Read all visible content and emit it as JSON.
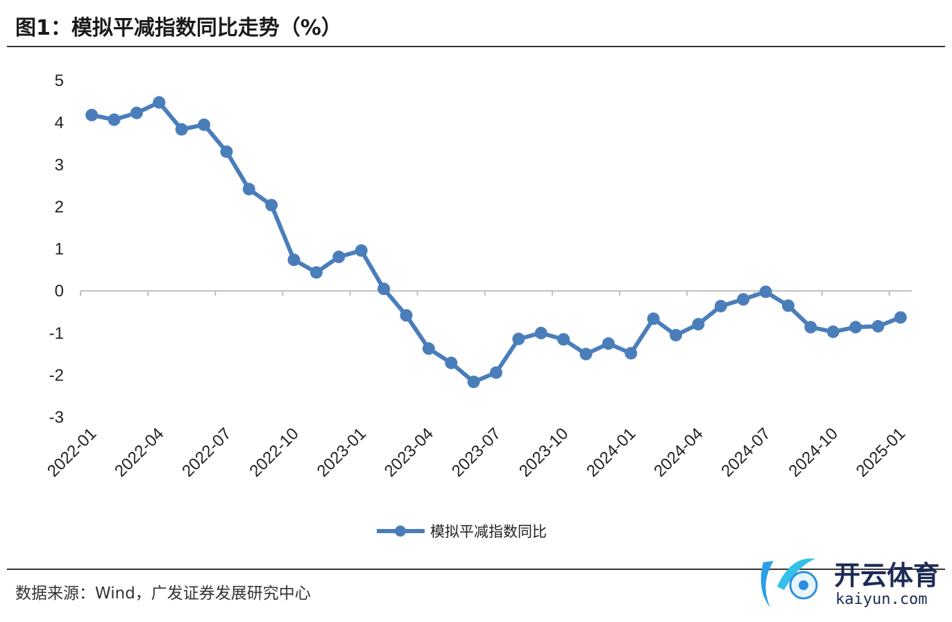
{
  "header": {
    "title": "图1：模拟平减指数同比走势（%）"
  },
  "footer": {
    "source": "数据来源：Wind，广发证券发展研究中心"
  },
  "watermark": {
    "brand_cn": "开云体育",
    "brand_en": "kaiyun.com"
  },
  "colors": {
    "series": "#4a7ebb",
    "axis": "#bfbfbf",
    "rule": "#333333"
  },
  "chart_data": {
    "type": "line",
    "title": "模拟平减指数同比走势（%）",
    "xlabel": "",
    "ylabel": "%",
    "ylim": [
      -3,
      5
    ],
    "yticks": [
      5,
      4,
      3,
      2,
      1,
      0,
      -1,
      -2,
      -3
    ],
    "xtick_labels": [
      "2022-01",
      "2022-04",
      "2022-07",
      "2022-10",
      "2023-01",
      "2023-04",
      "2023-07",
      "2023-10",
      "2024-01",
      "2024-04",
      "2024-07",
      "2024-10",
      "2025-01"
    ],
    "grid": false,
    "legend_position": "bottom",
    "x": [
      "2022-01",
      "2022-02",
      "2022-03",
      "2022-04",
      "2022-05",
      "2022-06",
      "2022-07",
      "2022-08",
      "2022-09",
      "2022-10",
      "2022-11",
      "2022-12",
      "2023-01",
      "2023-02",
      "2023-03",
      "2023-04",
      "2023-05",
      "2023-06",
      "2023-07",
      "2023-08",
      "2023-09",
      "2023-10",
      "2023-11",
      "2023-12",
      "2024-01",
      "2024-02",
      "2024-03",
      "2024-04",
      "2024-05",
      "2024-06",
      "2024-07",
      "2024-08",
      "2024-09",
      "2024-10",
      "2024-11",
      "2024-12",
      "2025-01"
    ],
    "series": [
      {
        "name": "模拟平减指数同比",
        "values": [
          4.18,
          4.07,
          4.23,
          4.48,
          3.84,
          3.95,
          3.31,
          2.42,
          2.04,
          0.74,
          0.44,
          0.81,
          0.96,
          0.05,
          -0.58,
          -1.37,
          -1.71,
          -2.16,
          -1.94,
          -1.14,
          -1.0,
          -1.15,
          -1.5,
          -1.25,
          -1.48,
          -0.66,
          -1.05,
          -0.79,
          -0.36,
          -0.2,
          -0.02,
          -0.35,
          -0.86,
          -0.97,
          -0.86,
          -0.84,
          -0.63
        ]
      }
    ]
  }
}
